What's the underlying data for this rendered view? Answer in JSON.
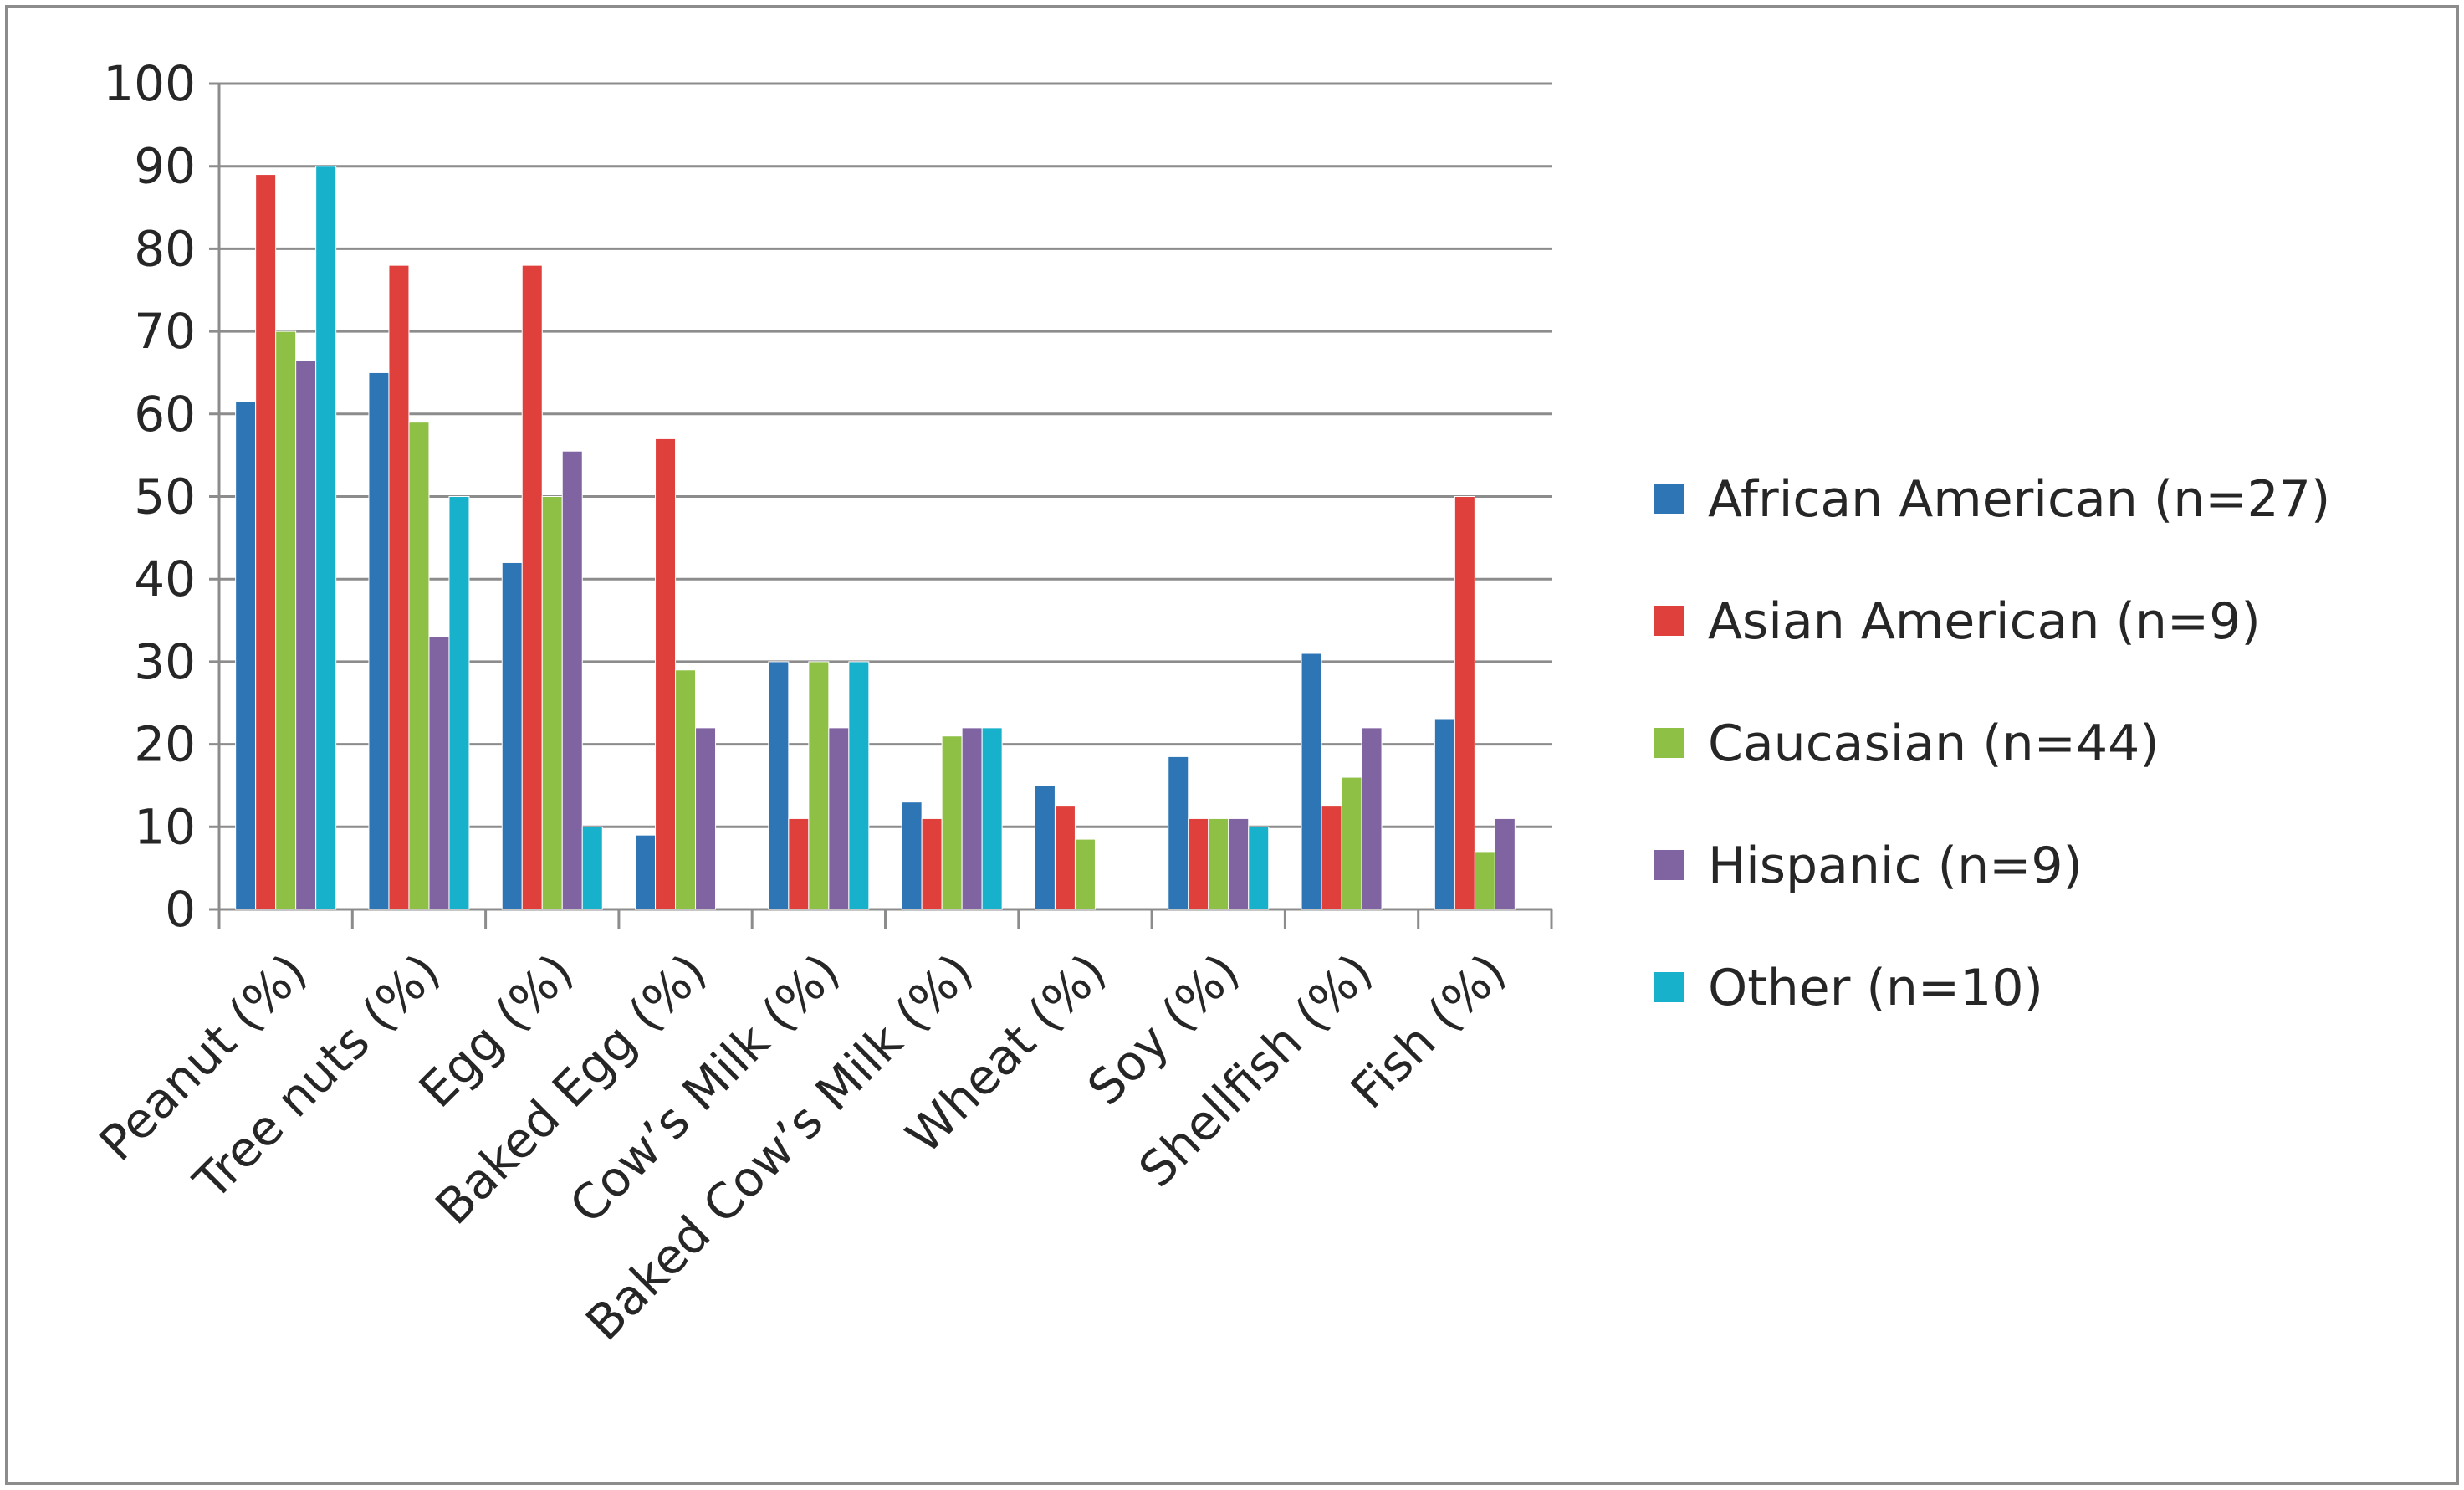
{
  "chart_data": {
    "type": "bar",
    "title": "",
    "xlabel": "",
    "ylabel": "",
    "ylim": [
      0,
      100
    ],
    "yticks": [
      "0",
      "10",
      "20",
      "30",
      "40",
      "50",
      "60",
      "70",
      "80",
      "90",
      "100"
    ],
    "grid": true,
    "legend_position": "right",
    "categories": [
      "Peanut (%)",
      "Tree nuts (%)",
      "Egg (%)",
      "Baked Egg (%)",
      "Cow’s Milk (%)",
      "Baked Cow’s Milk (%)",
      "Wheat (%)",
      "Soy (%)",
      "Shellfish (%)",
      "Fish (%)"
    ],
    "series": [
      {
        "name": "African American (n=27)",
        "color": "#2e75b6",
        "values": [
          61.5,
          65,
          42,
          9,
          30,
          13,
          15,
          18.5,
          31,
          23
        ]
      },
      {
        "name": "Asian American (n=9)",
        "color": "#e0403c",
        "values": [
          89,
          78,
          78,
          57,
          11,
          11,
          12.5,
          11,
          12.5,
          50
        ]
      },
      {
        "name": "Caucasian (n=44)",
        "color": "#8dc044",
        "values": [
          70,
          59,
          50,
          29,
          30,
          21,
          8.5,
          11,
          16,
          7
        ]
      },
      {
        "name": "Hispanic (n=9)",
        "color": "#8064a2",
        "values": [
          66.5,
          33,
          55.5,
          22,
          22,
          22,
          0,
          11,
          22,
          11
        ]
      },
      {
        "name": "Other (n=10)",
        "color": "#17b1cc",
        "values": [
          90,
          50,
          10,
          0,
          30,
          22,
          0,
          10,
          0,
          0
        ]
      }
    ]
  }
}
